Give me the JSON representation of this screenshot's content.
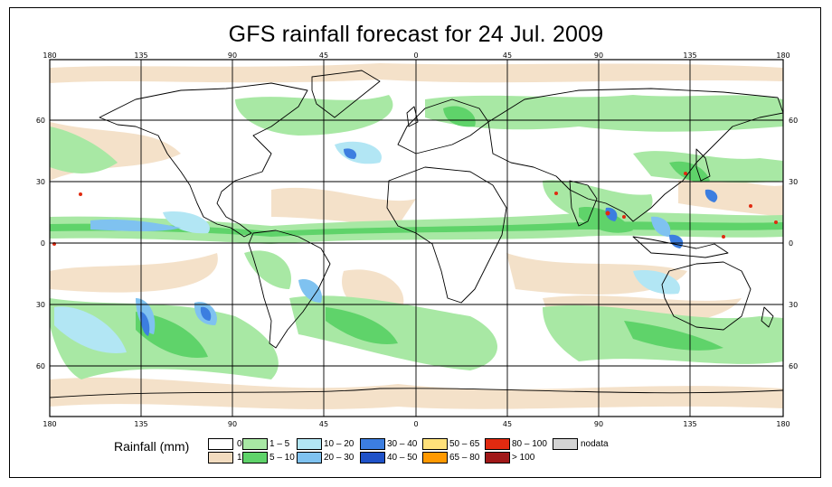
{
  "title": "GFS rainfall forecast for 24 Jul. 2009",
  "map": {
    "lon_ticks": [
      "180",
      "135",
      "90",
      "45",
      "0",
      "45",
      "90",
      "135",
      "180"
    ],
    "lat_ticks": [
      "60",
      "30",
      "0",
      "30",
      "60"
    ],
    "colors": {
      "ocean_zero": "#ffffff",
      "one": "#f2dcc0",
      "one_to_five": "#a8e8a4",
      "five_to_ten": "#5fd36a",
      "ten_to_twenty": "#b2e6f4",
      "twenty_to_thirty": "#7fc2f0",
      "thirty_to_forty": "#3c7ee0",
      "forty_to_fifty": "#1f52c8",
      "heavy": "#e02a10",
      "coast": "#000000"
    }
  },
  "legend": {
    "title": "Rainfall (mm)",
    "items": [
      {
        "label": "0",
        "color": "#ffffff"
      },
      {
        "label": "1",
        "color": "#f2dcc0"
      },
      {
        "label": "1 – 5",
        "color": "#a8e8a4"
      },
      {
        "label": "5 – 10",
        "color": "#5fd36a"
      },
      {
        "label": "10 – 20",
        "color": "#b2e6f4"
      },
      {
        "label": "20 – 30",
        "color": "#7fc2f0"
      },
      {
        "label": "30 – 40",
        "color": "#3c7ee0"
      },
      {
        "label": "40 – 50",
        "color": "#1f52c8"
      },
      {
        "label": "50 – 65",
        "color": "#ffe17a"
      },
      {
        "label": "65 – 80",
        "color": "#ff9900"
      },
      {
        "label": "80 – 100",
        "color": "#e02a10"
      },
      {
        "label": "> 100",
        "color": "#a01818"
      },
      {
        "label": "nodata",
        "color": "#d4d4d4"
      }
    ]
  }
}
